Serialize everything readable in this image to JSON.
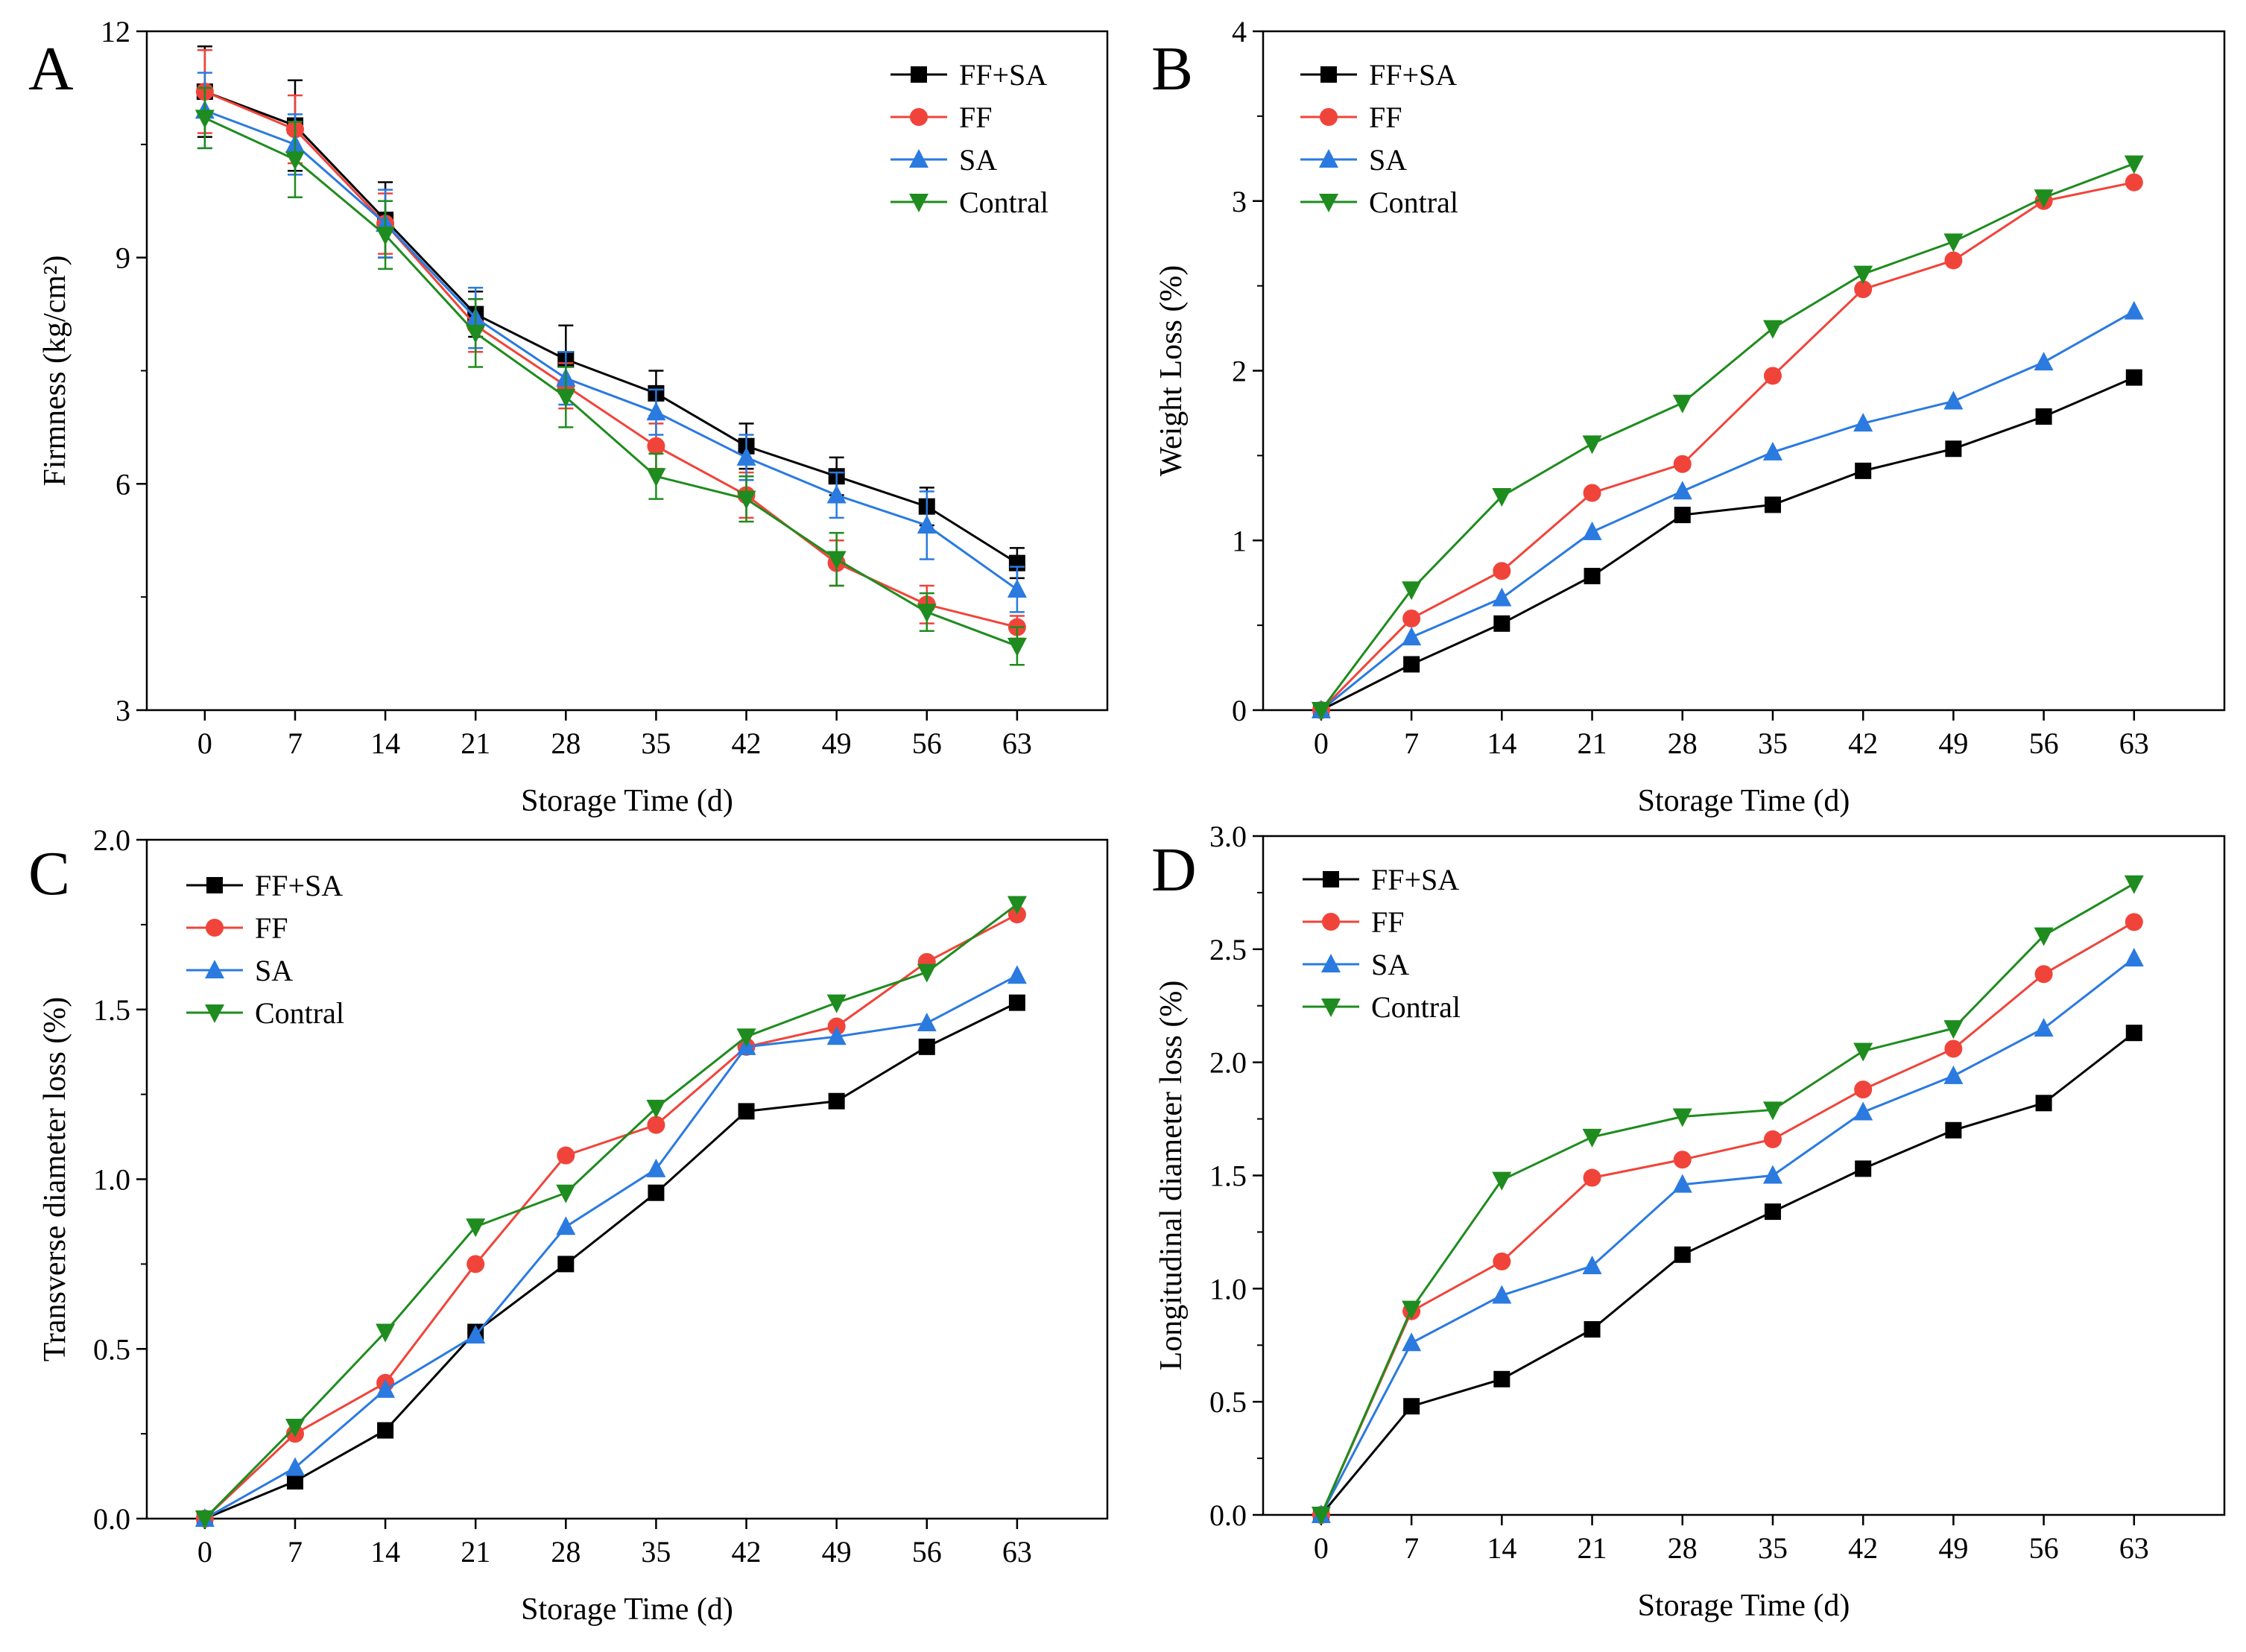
{
  "figure": {
    "background": "#ffffff"
  },
  "chart_data": [
    {
      "panel": "A",
      "type": "line",
      "xlabel": "Storage Time (d)",
      "ylabel": "Firmness (kg/cm²)",
      "x": [
        0,
        7,
        14,
        21,
        28,
        35,
        42,
        49,
        56,
        63
      ],
      "xticks": [
        "0",
        "7",
        "14",
        "21",
        "28",
        "35",
        "42",
        "49",
        "56",
        "63"
      ],
      "xlim": [
        -4.5,
        70
      ],
      "ylim": [
        3,
        12
      ],
      "yticks": [
        "3",
        "6",
        "9",
        "12"
      ],
      "legend": "top-right",
      "series": [
        {
          "name": "FF+SA",
          "color": "#000000",
          "marker": "square",
          "values": [
            11.2,
            10.75,
            9.5,
            8.25,
            7.65,
            7.2,
            6.5,
            6.1,
            5.7,
            4.95
          ],
          "errors": [
            0.6,
            0.6,
            0.5,
            0.3,
            0.45,
            0.3,
            0.3,
            0.25,
            0.25,
            0.2
          ]
        },
        {
          "name": "FF",
          "color": "#f0443a",
          "marker": "circle",
          "values": [
            11.2,
            10.7,
            9.45,
            8.1,
            7.3,
            6.5,
            5.85,
            4.95,
            4.4,
            4.1
          ],
          "errors": [
            0.55,
            0.45,
            0.4,
            0.35,
            0.3,
            0.3,
            0.3,
            0.3,
            0.25,
            0.15
          ]
        },
        {
          "name": "SA",
          "color": "#2a7ae0",
          "marker": "triangle-up",
          "values": [
            10.95,
            10.5,
            9.45,
            8.2,
            7.4,
            6.95,
            6.35,
            5.85,
            5.45,
            4.6
          ],
          "errors": [
            0.5,
            0.4,
            0.45,
            0.4,
            0.35,
            0.3,
            0.3,
            0.3,
            0.45,
            0.3
          ]
        },
        {
          "name": "Contral",
          "color": "#1e8c1e",
          "marker": "triangle-down",
          "values": [
            10.85,
            10.3,
            9.3,
            8.0,
            7.15,
            6.1,
            5.8,
            5.0,
            4.3,
            3.85
          ],
          "errors": [
            0.4,
            0.5,
            0.45,
            0.45,
            0.4,
            0.3,
            0.3,
            0.35,
            0.25,
            0.25
          ]
        }
      ]
    },
    {
      "panel": "B",
      "type": "line",
      "xlabel": "Storage Time (d)",
      "ylabel": "Weight Loss (%)",
      "x": [
        0,
        7,
        14,
        21,
        28,
        35,
        42,
        49,
        56,
        63
      ],
      "xticks": [
        "0",
        "7",
        "14",
        "21",
        "28",
        "35",
        "42",
        "49",
        "56",
        "63"
      ],
      "xlim": [
        -4.5,
        70
      ],
      "ylim": [
        0,
        4
      ],
      "yticks": [
        "0",
        "1",
        "2",
        "3",
        "4"
      ],
      "legend": "top-left",
      "series": [
        {
          "name": "FF+SA",
          "color": "#000000",
          "marker": "square",
          "values": [
            0,
            0.27,
            0.51,
            0.79,
            1.15,
            1.21,
            1.41,
            1.54,
            1.73,
            1.96
          ]
        },
        {
          "name": "FF",
          "color": "#f0443a",
          "marker": "circle",
          "values": [
            0,
            0.54,
            0.82,
            1.28,
            1.45,
            1.97,
            2.48,
            2.65,
            3.0,
            3.11
          ]
        },
        {
          "name": "SA",
          "color": "#2a7ae0",
          "marker": "triangle-up",
          "values": [
            0,
            0.43,
            0.66,
            1.05,
            1.29,
            1.52,
            1.69,
            1.82,
            2.05,
            2.35
          ]
        },
        {
          "name": "Contral",
          "color": "#1e8c1e",
          "marker": "triangle-down",
          "values": [
            0,
            0.71,
            1.26,
            1.57,
            1.81,
            2.25,
            2.57,
            2.76,
            3.02,
            3.22
          ]
        }
      ]
    },
    {
      "panel": "C",
      "type": "line",
      "xlabel": "Storage Time (d)",
      "ylabel": "Transverse diameter loss (%)",
      "x": [
        0,
        7,
        14,
        21,
        28,
        35,
        42,
        49,
        56,
        63
      ],
      "xticks": [
        "0",
        "7",
        "14",
        "21",
        "28",
        "35",
        "42",
        "49",
        "56",
        "63"
      ],
      "xlim": [
        -4.5,
        70
      ],
      "ylim": [
        0,
        2
      ],
      "yticks": [
        "0.0",
        "0.5",
        "1.0",
        "1.5",
        "2.0"
      ],
      "legend": "top-left",
      "series": [
        {
          "name": "FF+SA",
          "color": "#000000",
          "marker": "square",
          "values": [
            0,
            0.11,
            0.26,
            0.55,
            0.75,
            0.96,
            1.2,
            1.23,
            1.39,
            1.52
          ]
        },
        {
          "name": "FF",
          "color": "#f0443a",
          "marker": "circle",
          "values": [
            0,
            0.25,
            0.4,
            0.75,
            1.07,
            1.16,
            1.39,
            1.45,
            1.64,
            1.78
          ]
        },
        {
          "name": "SA",
          "color": "#2a7ae0",
          "marker": "triangle-up",
          "values": [
            0,
            0.15,
            0.38,
            0.54,
            0.86,
            1.03,
            1.39,
            1.42,
            1.46,
            1.6
          ]
        },
        {
          "name": "Contral",
          "color": "#1e8c1e",
          "marker": "triangle-down",
          "values": [
            0,
            0.27,
            0.55,
            0.86,
            0.96,
            1.21,
            1.42,
            1.52,
            1.61,
            1.81
          ]
        }
      ]
    },
    {
      "panel": "D",
      "type": "line",
      "xlabel": "Storage Time (d)",
      "ylabel": "Longitudinal diameter loss (%)",
      "x": [
        0,
        7,
        14,
        21,
        28,
        35,
        42,
        49,
        56,
        63
      ],
      "xticks": [
        "0",
        "7",
        "14",
        "21",
        "28",
        "35",
        "42",
        "49",
        "56",
        "63"
      ],
      "xlim": [
        -4.5,
        70
      ],
      "ylim": [
        0,
        3
      ],
      "yticks": [
        "0.0",
        "0.5",
        "1.0",
        "1.5",
        "2.0",
        "2.5",
        "3.0"
      ],
      "legend": "top-left",
      "series": [
        {
          "name": "FF+SA",
          "color": "#000000",
          "marker": "square",
          "values": [
            0,
            0.48,
            0.6,
            0.82,
            1.15,
            1.34,
            1.53,
            1.7,
            1.82,
            2.13
          ]
        },
        {
          "name": "FF",
          "color": "#f0443a",
          "marker": "circle",
          "values": [
            0,
            0.9,
            1.12,
            1.49,
            1.57,
            1.66,
            1.88,
            2.06,
            2.39,
            2.62
          ]
        },
        {
          "name": "SA",
          "color": "#2a7ae0",
          "marker": "triangle-up",
          "values": [
            0,
            0.76,
            0.97,
            1.1,
            1.46,
            1.5,
            1.78,
            1.94,
            2.15,
            2.46
          ]
        },
        {
          "name": "Contral",
          "color": "#1e8c1e",
          "marker": "triangle-down",
          "values": [
            0,
            0.91,
            1.48,
            1.67,
            1.76,
            1.79,
            2.05,
            2.15,
            2.56,
            2.79
          ]
        }
      ]
    }
  ]
}
